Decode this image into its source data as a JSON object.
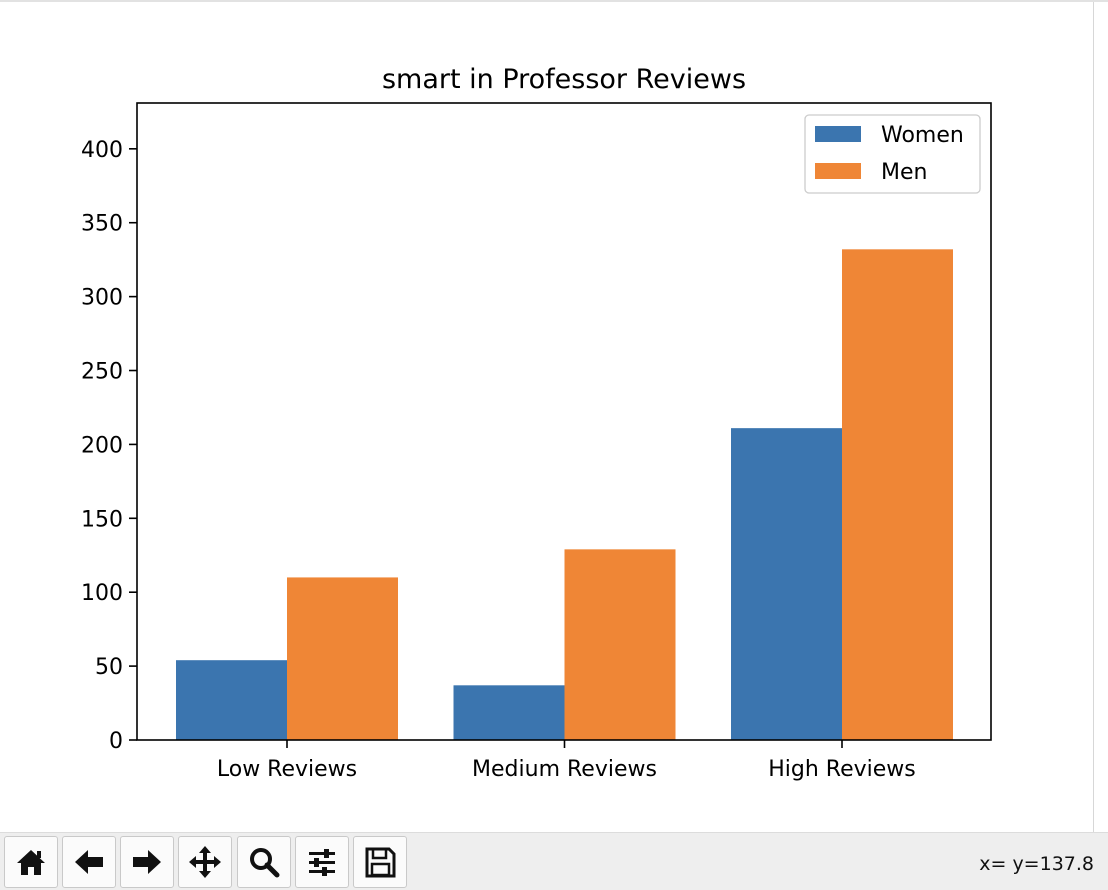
{
  "toolbar": {
    "buttons": [
      {
        "name": "home",
        "icon": "home-icon"
      },
      {
        "name": "back",
        "icon": "arrow-left-icon"
      },
      {
        "name": "forward",
        "icon": "arrow-right-icon"
      },
      {
        "name": "pan",
        "icon": "move-icon"
      },
      {
        "name": "zoom",
        "icon": "magnifier-icon"
      },
      {
        "name": "configure-subplots",
        "icon": "sliders-icon"
      },
      {
        "name": "save",
        "icon": "floppy-disk-icon"
      }
    ],
    "coordinates": "x= y=137.8"
  },
  "chart_data": {
    "type": "bar",
    "title": "smart in Professor Reviews",
    "xlabel": "",
    "ylabel": "",
    "categories": [
      "Low Reviews",
      "Medium Reviews",
      "High Reviews"
    ],
    "series": [
      {
        "name": "Women",
        "color": "#3b75af",
        "values": [
          54,
          37,
          211
        ]
      },
      {
        "name": "Men",
        "color": "#ef8636",
        "values": [
          110,
          129,
          332
        ]
      }
    ],
    "ylim": [
      0,
      431
    ],
    "yticks": [
      0,
      50,
      100,
      150,
      200,
      250,
      300,
      350,
      400
    ],
    "legend": "top-right",
    "grid": false
  }
}
